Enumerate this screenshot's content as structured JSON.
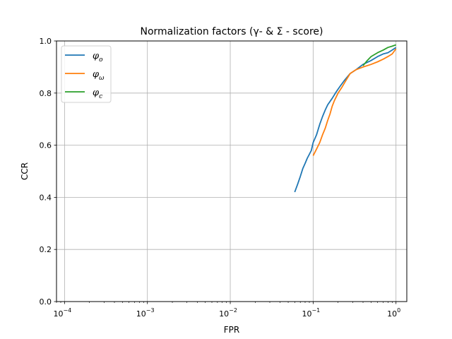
{
  "chart_data": {
    "type": "line",
    "title": "Normalization factors (γ- & Σ - score)",
    "xlabel": "FPR",
    "ylabel": "CCR",
    "xscale": "log",
    "xlim": [
      8e-05,
      1.35
    ],
    "ylim": [
      0.0,
      1.0
    ],
    "x_ticks": [
      0.0001,
      0.001,
      0.01,
      0.1,
      1
    ],
    "x_tick_labels": [
      {
        "base": "10",
        "exp": "−4"
      },
      {
        "base": "10",
        "exp": "−3"
      },
      {
        "base": "10",
        "exp": "−2"
      },
      {
        "base": "10",
        "exp": "−1"
      },
      {
        "base": "10",
        "exp": "0"
      }
    ],
    "y_ticks": [
      0.0,
      0.2,
      0.4,
      0.6,
      0.8,
      1.0
    ],
    "y_tick_labels": [
      "0.0",
      "0.2",
      "0.4",
      "0.6",
      "0.8",
      "1.0"
    ],
    "grid": true,
    "legend_position": "top-left",
    "series": [
      {
        "name": "φ",
        "subscript": "o",
        "color": "#1f77b4",
        "x": [
          0.06,
          0.065,
          0.07,
          0.075,
          0.08,
          0.085,
          0.09,
          0.095,
          0.1,
          0.11,
          0.12,
          0.13,
          0.14,
          0.15,
          0.17,
          0.19,
          0.21,
          0.24,
          0.28,
          0.33,
          0.4,
          0.5,
          0.6,
          0.7,
          0.8,
          0.9,
          1.0
        ],
        "y": [
          0.42,
          0.45,
          0.48,
          0.51,
          0.53,
          0.55,
          0.565,
          0.58,
          0.61,
          0.64,
          0.68,
          0.71,
          0.735,
          0.755,
          0.78,
          0.805,
          0.825,
          0.85,
          0.875,
          0.89,
          0.91,
          0.925,
          0.94,
          0.95,
          0.955,
          0.965,
          0.975
        ]
      },
      {
        "name": "φ",
        "subscript": "ω",
        "color": "#ff7f0e",
        "x": [
          0.1,
          0.11,
          0.12,
          0.13,
          0.14,
          0.15,
          0.16,
          0.17,
          0.18,
          0.2,
          0.22,
          0.25,
          0.28,
          0.33,
          0.4,
          0.5,
          0.6,
          0.7,
          0.8,
          0.9,
          1.0
        ],
        "y": [
          0.56,
          0.585,
          0.61,
          0.64,
          0.665,
          0.695,
          0.72,
          0.75,
          0.77,
          0.8,
          0.82,
          0.85,
          0.875,
          0.89,
          0.9,
          0.91,
          0.92,
          0.93,
          0.94,
          0.95,
          0.97
        ]
      },
      {
        "name": "φ",
        "subscript": "c",
        "color": "#2ca02c",
        "x": [
          0.4,
          0.45,
          0.5,
          0.6,
          0.7,
          0.8,
          0.9,
          1.0
        ],
        "y": [
          0.905,
          0.925,
          0.94,
          0.955,
          0.965,
          0.975,
          0.98,
          0.985
        ]
      }
    ]
  }
}
